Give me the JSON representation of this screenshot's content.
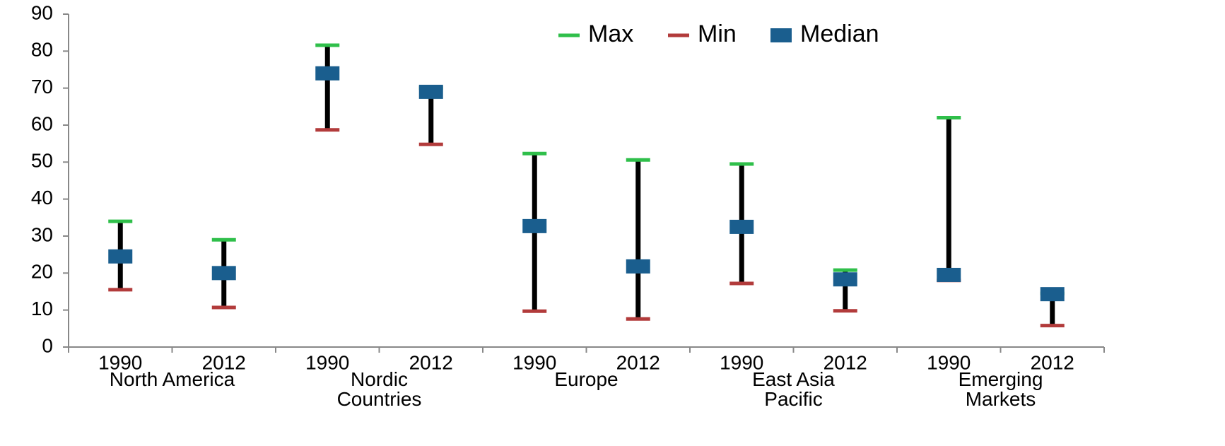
{
  "chart_data": {
    "type": "stock",
    "categories": [
      "1990",
      "2012",
      "1990",
      "2012",
      "1990",
      "2012",
      "1990",
      "2012",
      "1990",
      "2012"
    ],
    "groups": [
      "North America",
      "Nordic Countries",
      "Europe",
      "East Asia Pacific",
      "Emerging Markets"
    ],
    "series": [
      {
        "name": "Max",
        "color": "#2fbf4a",
        "values": [
          34,
          29,
          81.6,
          70,
          52.3,
          50.6,
          49.5,
          20.8,
          62,
          14.5
        ]
      },
      {
        "name": "Min",
        "color": "#b23b3b",
        "values": [
          15.5,
          10.7,
          58.7,
          54.8,
          9.7,
          7.6,
          17.2,
          9.8,
          18,
          5.8
        ]
      },
      {
        "name": "Median",
        "color": "#1a5e8e",
        "values": [
          24.5,
          20,
          74,
          69,
          32.7,
          21.8,
          32.5,
          18.3,
          19.5,
          14.3
        ]
      }
    ],
    "ylim": [
      0,
      90
    ],
    "yticks": [
      0,
      10,
      20,
      30,
      40,
      50,
      60,
      70,
      80,
      90
    ],
    "grid": false,
    "legend": "top"
  }
}
